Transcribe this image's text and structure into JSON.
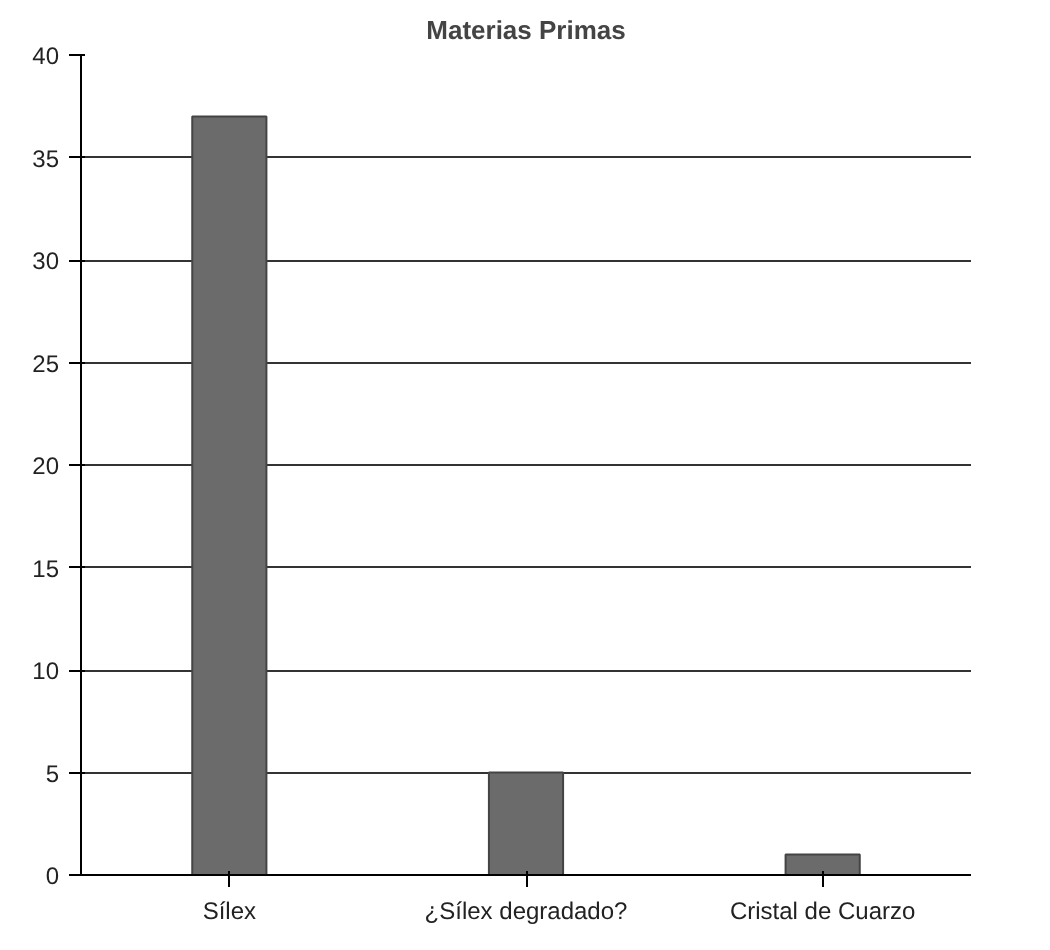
{
  "chart_data": {
    "type": "bar",
    "title": "Materias Primas",
    "categories": [
      "Sílex",
      "¿Sílex degradado?",
      "Cristal de Cuarzo"
    ],
    "values": [
      37,
      5,
      1
    ],
    "color": "#6b6b6b",
    "ylim": [
      0,
      40
    ],
    "yticks": [
      0,
      5,
      10,
      15,
      20,
      25,
      30,
      35,
      40
    ],
    "grid": "y"
  }
}
